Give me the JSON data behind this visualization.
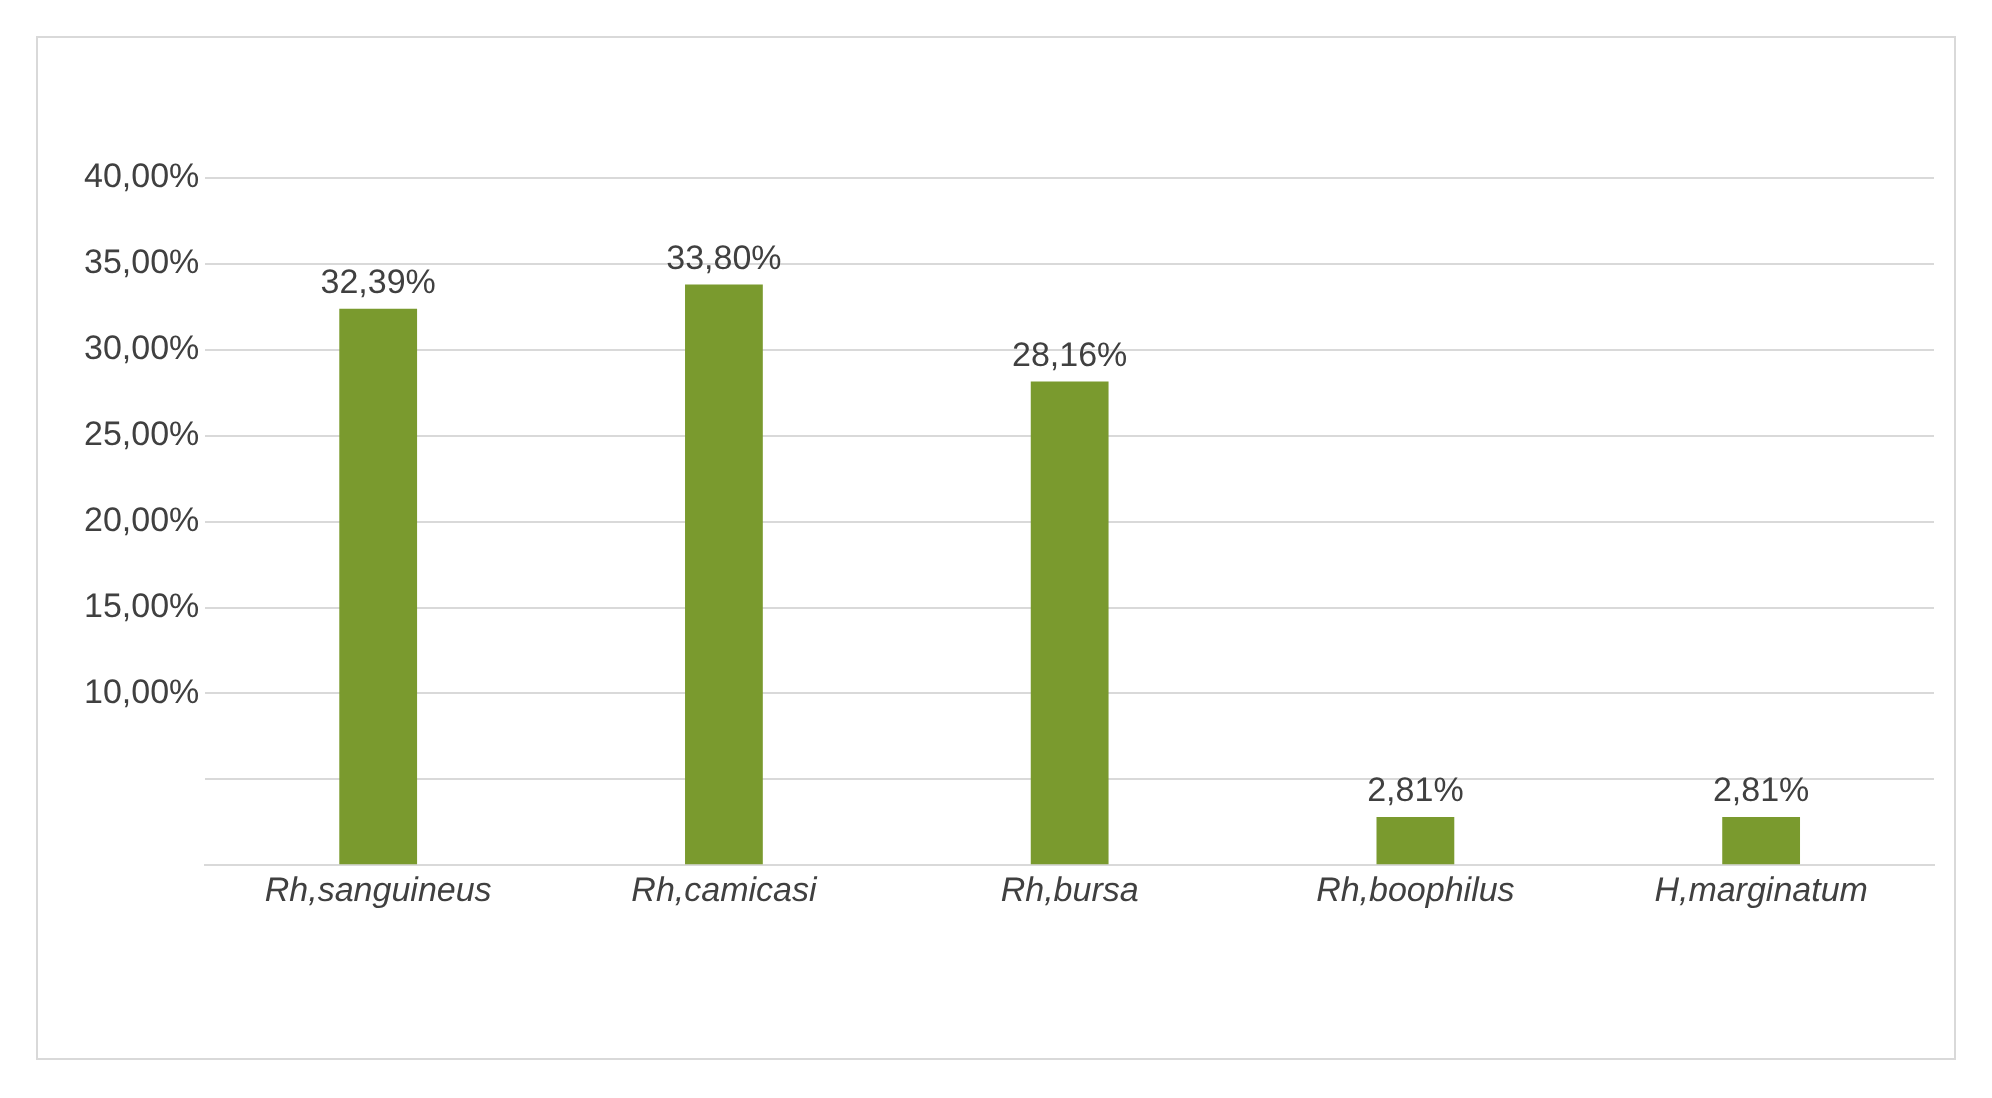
{
  "chart_data": {
    "type": "bar",
    "categories": [
      "Rh,sanguineus",
      "Rh,camicasi",
      "Rh,bursa",
      "Rh,boophilus",
      "H,marginatum"
    ],
    "values": [
      32.39,
      33.8,
      28.16,
      2.81,
      2.81
    ],
    "value_labels": [
      "32,39%",
      "33,80%",
      "28,16%",
      "2,81%",
      "2,81%"
    ],
    "color": "#7a9a2e",
    "ylim": [
      0,
      40
    ],
    "yticks": [
      {
        "value": 0,
        "label": null
      },
      {
        "value": 5,
        "label": null
      },
      {
        "value": 10,
        "label": "10,00%"
      },
      {
        "value": 15,
        "label": "15,00%"
      },
      {
        "value": 20,
        "label": "20,00%"
      },
      {
        "value": 25,
        "label": "25,00%"
      },
      {
        "value": 30,
        "label": "30,00%"
      },
      {
        "value": 35,
        "label": "35,00%"
      },
      {
        "value": 40,
        "label": "40,00%"
      }
    ],
    "grid": "y",
    "legend": false
  }
}
